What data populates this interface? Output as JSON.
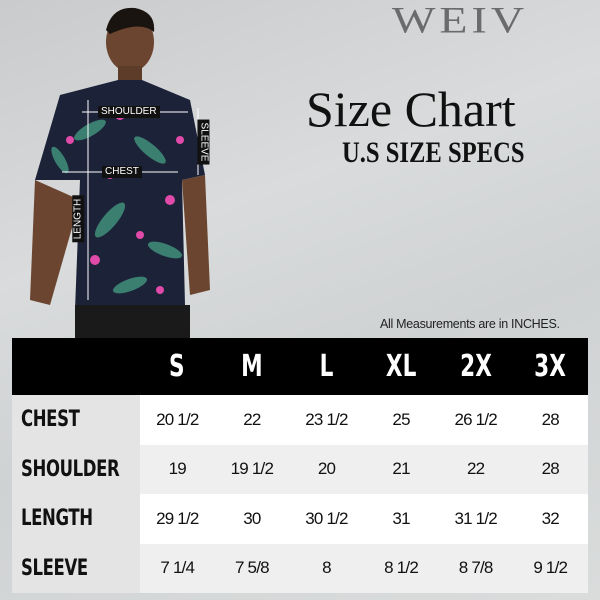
{
  "brand": "WEIV",
  "title": "Size Chart",
  "subtitle": "U.S SIZE SPECS",
  "note": "All Measurements are in INCHES.",
  "measure_labels": {
    "shoulder": "SHOULDER",
    "chest": "CHEST",
    "length": "LENGTH",
    "sleeve": "SLEEVE"
  },
  "colors": {
    "header_bg": "#000000",
    "label_bg": "#e4e4e4",
    "shirt": "#1c2238",
    "accent_pink": "#e04aa8"
  },
  "table": {
    "headers": [
      "S",
      "M",
      "L",
      "XL",
      "2X",
      "3X"
    ],
    "rows": [
      {
        "label": "CHEST",
        "values": [
          "20 1/2",
          "22",
          "23 1/2",
          "25",
          "26 1/2",
          "28"
        ]
      },
      {
        "label": "SHOULDER",
        "values": [
          "19",
          "19 1/2",
          "20",
          "21",
          "22",
          "28"
        ]
      },
      {
        "label": "LENGTH",
        "values": [
          "29 1/2",
          "30",
          "30 1/2",
          "31",
          "31 1/2",
          "32"
        ]
      },
      {
        "label": "SLEEVE",
        "values": [
          "7 1/4",
          "7 5/8",
          "8",
          "8 1/2",
          "8 7/8",
          "9 1/2"
        ]
      }
    ]
  }
}
